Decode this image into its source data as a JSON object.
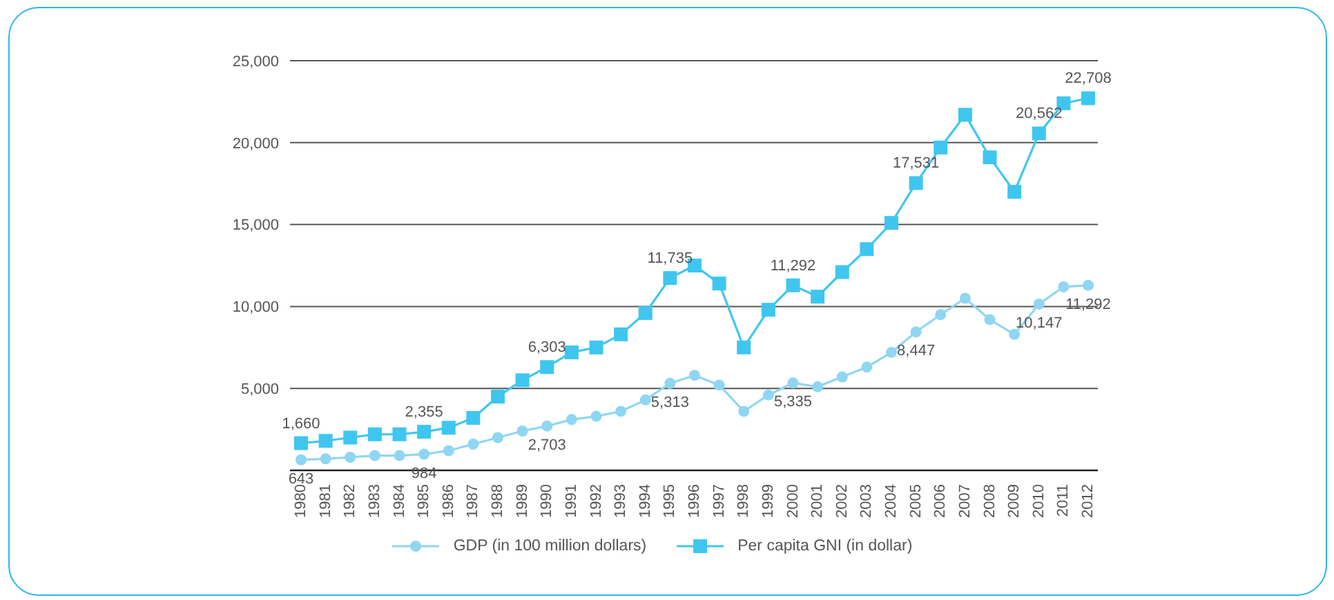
{
  "chart_data": {
    "type": "line",
    "categories": [
      "1980",
      "1981",
      "1982",
      "1983",
      "1984",
      "1985",
      "1986",
      "1987",
      "1988",
      "1989",
      "1990",
      "1991",
      "1992",
      "1993",
      "1994",
      "1995",
      "1996",
      "1997",
      "1998",
      "1999",
      "2000",
      "2001",
      "2002",
      "2003",
      "2004",
      "2005",
      "2006",
      "2007",
      "2008",
      "2009",
      "2010",
      "2011",
      "2012"
    ],
    "series": [
      {
        "name": "GDP (in 100 million dollars)",
        "color": "#8fd6f3",
        "marker": "circle",
        "values": [
          643,
          700,
          800,
          900,
          900,
          984,
          1200,
          1600,
          2000,
          2400,
          2703,
          3100,
          3300,
          3600,
          4300,
          5313,
          5800,
          5200,
          3600,
          4600,
          5335,
          5100,
          5700,
          6300,
          7200,
          8447,
          9500,
          10500,
          9200,
          8300,
          10147,
          11200,
          11292
        ],
        "value_labels": [
          "643",
          null,
          null,
          null,
          null,
          "984",
          null,
          null,
          null,
          null,
          "2,703",
          null,
          null,
          null,
          null,
          "5,313",
          null,
          null,
          null,
          null,
          "5,335",
          null,
          null,
          null,
          null,
          "8,447",
          null,
          null,
          null,
          null,
          "10,147",
          null,
          "11,292"
        ]
      },
      {
        "name": "Per capita GNI (in dollar)",
        "color": "#3fc6ef",
        "marker": "square",
        "values": [
          1660,
          1800,
          2000,
          2200,
          2200,
          2355,
          2600,
          3200,
          4500,
          5500,
          6303,
          7200,
          7500,
          8300,
          9600,
          11735,
          12500,
          11400,
          7500,
          9800,
          11292,
          10600,
          12100,
          13500,
          15100,
          17531,
          19700,
          21700,
          19100,
          17000,
          20562,
          22400,
          22708
        ],
        "value_labels": [
          "1,660",
          null,
          null,
          null,
          null,
          "2,355",
          null,
          null,
          null,
          null,
          "6,303",
          null,
          null,
          null,
          null,
          "11,735",
          null,
          null,
          null,
          null,
          "11,292",
          null,
          null,
          null,
          null,
          "17,531",
          null,
          null,
          null,
          null,
          "20,562",
          null,
          "22,708"
        ]
      }
    ],
    "ylim": [
      0,
      25000
    ],
    "yticks": [
      {
        "value": 5000,
        "label": "5,000"
      },
      {
        "value": 10000,
        "label": "10,000"
      },
      {
        "value": 15000,
        "label": "15,000"
      },
      {
        "value": 20000,
        "label": "20,000"
      },
      {
        "value": 25000,
        "label": "25,000"
      }
    ],
    "grid": "y",
    "legend": "bottom",
    "line_style": "solid"
  }
}
